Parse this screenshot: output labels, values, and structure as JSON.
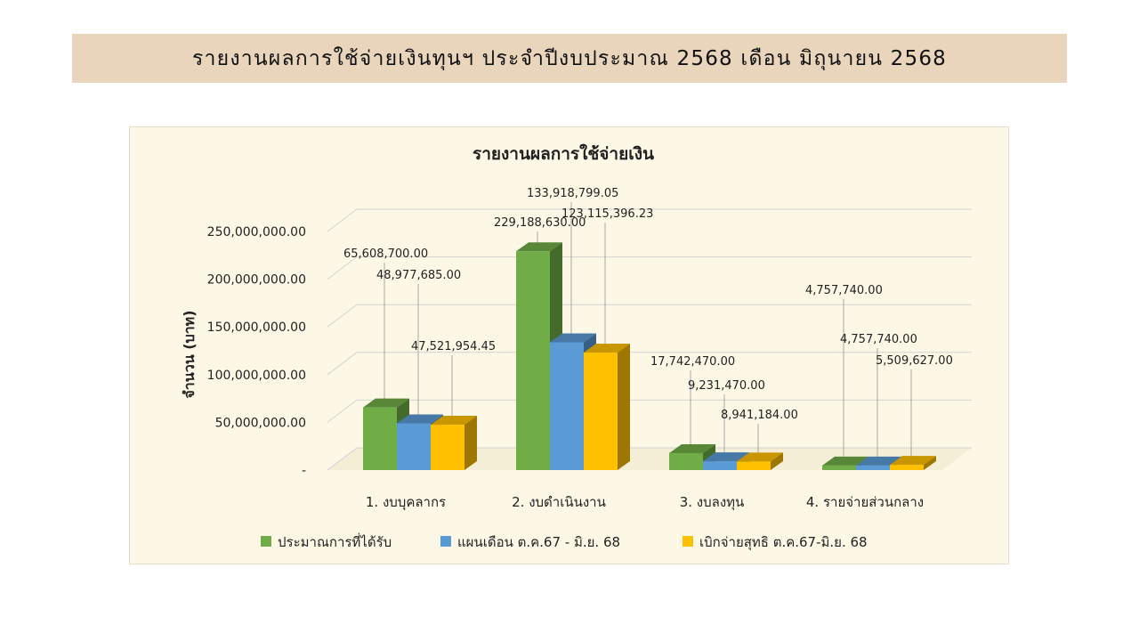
{
  "page_title": "รายงานผลการใช้จ่ายเงินทุนฯ  ประจำปีงบประมาณ  2568  เดือน  มิถุนายน  2568",
  "colors": {
    "banner": "#e8d5bb",
    "panel": "#fdf8e6",
    "series": [
      "#70ad47",
      "#5b9bd5",
      "#ffc000"
    ]
  },
  "chart_data": {
    "type": "bar",
    "style": "3d-clustered-column",
    "title": "รายงานผลการใช้จ่ายเงิน",
    "ylabel": "จำนวน (บาท)",
    "xlabel": "",
    "ylim": [
      0,
      250000000
    ],
    "yticks": [
      0,
      50000000,
      100000000,
      150000000,
      200000000,
      250000000
    ],
    "ytick_labels": [
      "-",
      "50,000,000.00",
      "100,000,000.00",
      "150,000,000.00",
      "200,000,000.00",
      "250,000,000.00"
    ],
    "grid": true,
    "legend_position": "bottom",
    "categories": [
      "1. งบบุคลากร",
      "2. งบดำเนินงาน",
      "3. งบลงทุน",
      "4. รายจ่ายส่วนกลาง"
    ],
    "series": [
      {
        "name": "ประมาณการที่ได้รับ",
        "values": [
          65608700.0,
          229188630.0,
          17742470.0,
          4757740.0
        ],
        "labels": [
          "65,608,700.00",
          "229,188,630.00",
          "17,742,470.00",
          "4,757,740.00"
        ]
      },
      {
        "name": "แผนเดือน ต.ค.67 - มิ.ย. 68",
        "values": [
          48977685.0,
          133918799.05,
          9231470.0,
          4757740.0
        ],
        "labels": [
          "48,977,685.00",
          "133,918,799.05",
          "9,231,470.00",
          "4,757,740.00"
        ]
      },
      {
        "name": "เบิกจ่ายสุทธิ ต.ค.67-มิ.ย. 68",
        "values": [
          47521954.45,
          123115396.23,
          8941184.0,
          5509627.0
        ],
        "labels": [
          "47,521,954.45",
          "123,115,396.23",
          "8,941,184.00",
          "5,509,627.00"
        ]
      }
    ]
  }
}
